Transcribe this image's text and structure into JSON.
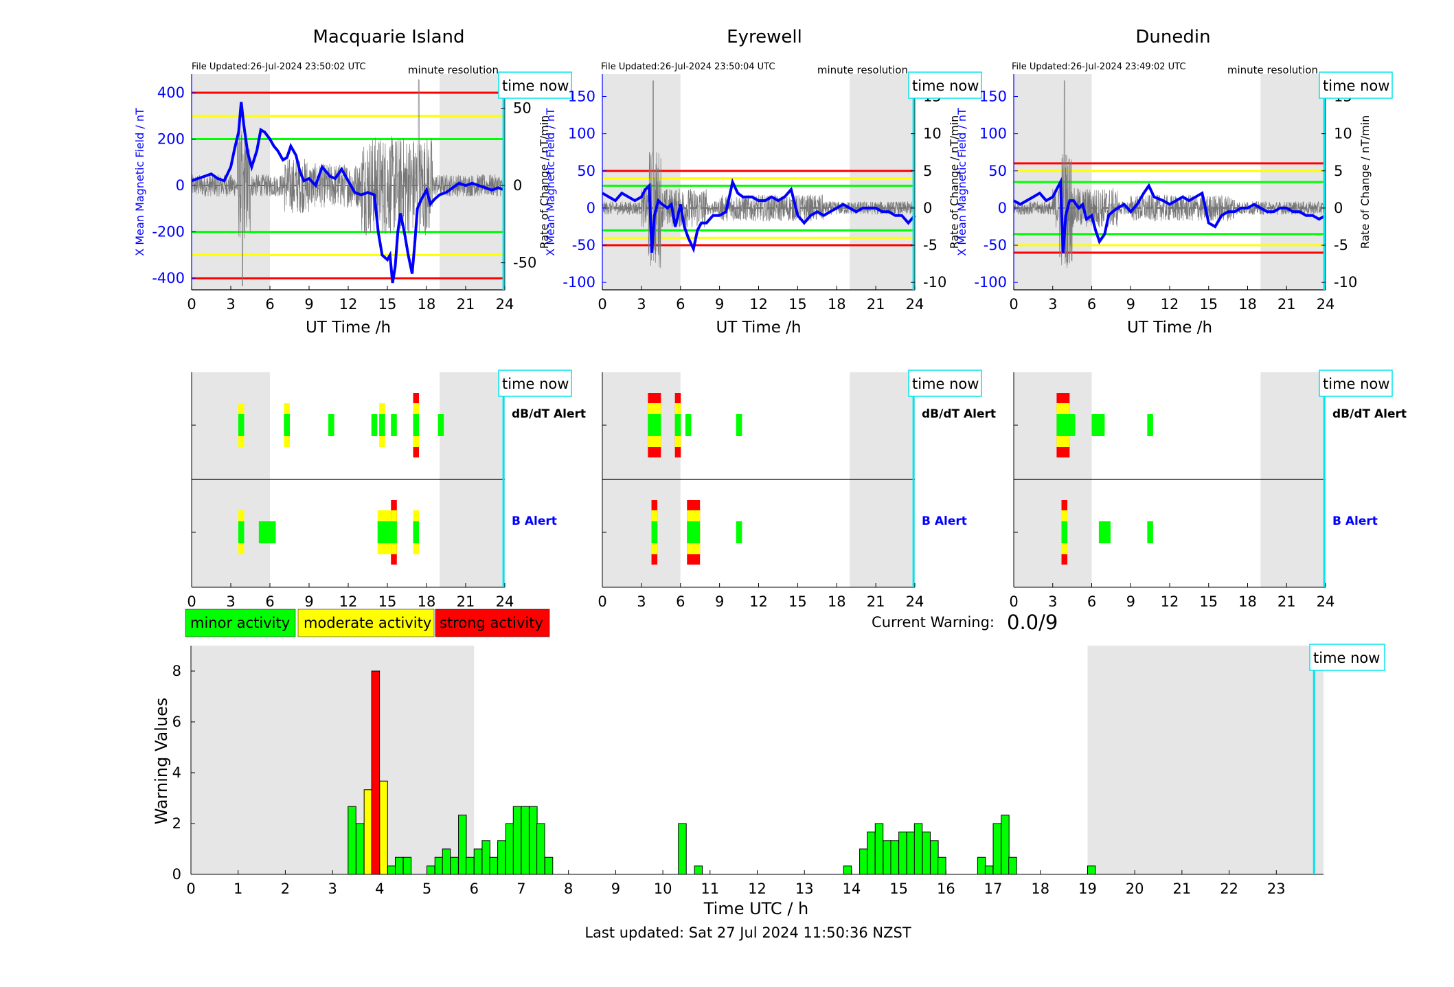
{
  "top_panels": [
    {
      "title": "Macquarie Island",
      "file_updated": "File Updated:26-Jul-2024 23:50:02 UTC",
      "resolution": "minute resolution",
      "time_now_label": "time now",
      "ylabel_left": "X Mean Magnetic Field / nT",
      "ylabel_right": "Rate of Change / nT/min",
      "xlabel": "UT Time /h",
      "x_ticks": [
        "0",
        "3",
        "6",
        "9",
        "12",
        "15",
        "18",
        "21",
        "24"
      ],
      "left_ticks": [
        "400",
        "200",
        "0",
        "-200",
        "-400"
      ],
      "right_ticks": [
        "50",
        "0",
        "-50"
      ]
    },
    {
      "title": "Eyrewell",
      "file_updated": "File Updated:26-Jul-2024 23:50:04 UTC",
      "resolution": "minute resolution",
      "time_now_label": "time now",
      "ylabel_left": "X Mean Magnetic Field / nT",
      "ylabel_right": "Rate of Change / nT/min",
      "xlabel": "UT Time /h",
      "x_ticks": [
        "0",
        "3",
        "6",
        "9",
        "12",
        "15",
        "18",
        "21",
        "24"
      ],
      "left_ticks": [
        "150",
        "100",
        "50",
        "0",
        "-50",
        "-100"
      ],
      "right_ticks": [
        "15",
        "10",
        "5",
        "0",
        "-5",
        "-10"
      ]
    },
    {
      "title": "Dunedin",
      "file_updated": "File Updated:26-Jul-2024 23:49:02 UTC",
      "resolution": "minute resolution",
      "time_now_label": "time now",
      "ylabel_left": "X Mean Magnetic Field / nT",
      "ylabel_right": "Rate of Change / nT/min",
      "xlabel": "UT Time /h",
      "x_ticks": [
        "0",
        "3",
        "6",
        "9",
        "12",
        "15",
        "18",
        "21",
        "24"
      ],
      "left_ticks": [
        "150",
        "100",
        "50",
        "0",
        "-50",
        "-100"
      ],
      "right_ticks": [
        "15",
        "10",
        "5",
        "0",
        "-5",
        "-10"
      ]
    }
  ],
  "alert_panels": [
    {
      "time_now_label": "time now",
      "dbdt_label": "dB/dT Alert",
      "b_label": "B Alert",
      "x_ticks": [
        "0",
        "3",
        "6",
        "9",
        "12",
        "15",
        "18",
        "21",
        "24"
      ]
    },
    {
      "time_now_label": "time now",
      "dbdt_label": "dB/dT Alert",
      "b_label": "B Alert",
      "x_ticks": [
        "0",
        "3",
        "6",
        "9",
        "12",
        "15",
        "18",
        "21",
        "24"
      ]
    },
    {
      "time_now_label": "time now",
      "dbdt_label": "dB/dT Alert",
      "b_label": "B Alert",
      "x_ticks": [
        "0",
        "3",
        "6",
        "9",
        "12",
        "15",
        "18",
        "21",
        "24"
      ]
    }
  ],
  "legend": [
    {
      "label": "minor activity",
      "color": "#00ff00"
    },
    {
      "label": "moderate activity",
      "color": "#ffff00"
    },
    {
      "label": "strong activity",
      "color": "#ff0000"
    }
  ],
  "current_warning": {
    "label": "Current Warning:",
    "value": "0.0/9"
  },
  "bottom_chart": {
    "ylabel": "Warning Values",
    "xlabel": "Time UTC / h",
    "time_now_label": "time now",
    "y_ticks": [
      "0",
      "2",
      "4",
      "6",
      "8"
    ],
    "x_ticks": [
      "0",
      "1",
      "2",
      "3",
      "4",
      "5",
      "6",
      "7",
      "8",
      "9",
      "10",
      "11",
      "12",
      "13",
      "14",
      "15",
      "16",
      "17",
      "18",
      "19",
      "20",
      "21",
      "22",
      "23"
    ]
  },
  "last_updated": "Last updated: Sat 27 Jul 2024 11:50:36 NZST",
  "colors": {
    "minor": "#00ff00",
    "moderate": "#ffff00",
    "strong": "#ff0000",
    "field_line": "#0000ff",
    "time_now": "#00e5ee",
    "night_shade": "#e6e6e6"
  },
  "chart_data": [
    {
      "type": "line",
      "station": "Macquarie Island",
      "xlim": [
        0,
        24
      ],
      "ylim_left": [
        -450,
        480
      ],
      "ylim_right": [
        -67.5,
        72
      ],
      "shaded_x": [
        [
          0,
          6
        ],
        [
          19,
          24
        ]
      ],
      "time_now_x": 23.9,
      "threshold_lines": [
        {
          "color": "red",
          "y": [
            400,
            -400
          ]
        },
        {
          "color": "yellow",
          "y": [
            300,
            -300
          ]
        },
        {
          "color": "green",
          "y": [
            200,
            -200
          ]
        }
      ],
      "field_series": {
        "x": [
          0,
          0.5,
          1,
          1.5,
          2,
          2.5,
          3,
          3.3,
          3.6,
          3.8,
          4,
          4.3,
          4.6,
          5,
          5.3,
          5.6,
          6,
          6.3,
          6.6,
          7,
          7.3,
          7.6,
          8,
          8.3,
          8.6,
          9,
          9.5,
          10,
          10.3,
          10.6,
          11,
          11.5,
          12,
          12.5,
          13,
          13.5,
          14,
          14.3,
          14.6,
          15,
          15.2,
          15.4,
          15.6,
          15.8,
          16,
          16.3,
          16.6,
          16.9,
          17.1,
          17.3,
          17.6,
          18,
          18.3,
          18.6,
          19,
          19.5,
          20,
          20.5,
          21,
          21.5,
          22,
          22.5,
          23,
          23.5,
          24
        ],
        "y": [
          20,
          30,
          40,
          50,
          30,
          20,
          80,
          160,
          230,
          360,
          260,
          140,
          80,
          150,
          240,
          230,
          200,
          170,
          150,
          110,
          120,
          170,
          130,
          60,
          20,
          30,
          0,
          80,
          60,
          40,
          30,
          70,
          20,
          -30,
          -40,
          -30,
          -40,
          -200,
          -300,
          -320,
          -300,
          -420,
          -350,
          -200,
          -120,
          -200,
          -300,
          -380,
          -250,
          -100,
          -60,
          -20,
          -80,
          -60,
          -40,
          -30,
          -10,
          10,
          0,
          10,
          0,
          -10,
          -20,
          -10,
          -20
        ]
      },
      "rate_series": "high-frequency noise ±50 nT/min, spikes near 4h, 8h, 14–18h"
    },
    {
      "type": "line",
      "station": "Eyrewell",
      "xlim": [
        0,
        24
      ],
      "ylim_left": [
        -110,
        180
      ],
      "ylim_right": [
        -11,
        18
      ],
      "shaded_x": [
        [
          0,
          6
        ],
        [
          19,
          24
        ]
      ],
      "time_now_x": 23.9,
      "threshold_lines": [
        {
          "color": "red",
          "y": [
            50,
            -50
          ]
        },
        {
          "color": "yellow",
          "y": [
            40,
            -40
          ]
        },
        {
          "color": "green",
          "y": [
            30,
            -30
          ]
        }
      ],
      "field_series": {
        "x": [
          0,
          0.5,
          1,
          1.5,
          2,
          2.5,
          3,
          3.3,
          3.6,
          3.8,
          4,
          4.3,
          4.6,
          5,
          5.3,
          5.6,
          6,
          6.3,
          6.6,
          7,
          7.3,
          7.6,
          8,
          8.5,
          9,
          9.5,
          10,
          10.4,
          10.8,
          11.5,
          12,
          12.5,
          13,
          13.5,
          14,
          14.5,
          15,
          15.5,
          16,
          16.5,
          17,
          17.5,
          18,
          18.5,
          19,
          19.5,
          20,
          20.5,
          21,
          21.5,
          22,
          22.5,
          23,
          23.5,
          24
        ],
        "y": [
          20,
          15,
          10,
          20,
          15,
          10,
          15,
          25,
          30,
          -60,
          -10,
          10,
          5,
          0,
          5,
          -25,
          5,
          -25,
          -40,
          -55,
          -30,
          -20,
          -20,
          -10,
          -10,
          -5,
          35,
          20,
          15,
          15,
          10,
          10,
          15,
          10,
          15,
          25,
          -10,
          -20,
          -10,
          -5,
          -10,
          -5,
          0,
          5,
          0,
          -5,
          0,
          0,
          0,
          -5,
          -5,
          -10,
          -10,
          -20,
          -10
        ]
      },
      "rate_series": "noise ±5 nT/min, spike ~+15 near 4h"
    },
    {
      "type": "line",
      "station": "Dunedin",
      "xlim": [
        0,
        24
      ],
      "ylim_left": [
        -110,
        180
      ],
      "ylim_right": [
        -11,
        18
      ],
      "shaded_x": [
        [
          0,
          6
        ],
        [
          19,
          24
        ]
      ],
      "time_now_x": 23.9,
      "threshold_lines": [
        {
          "color": "red",
          "y": [
            60,
            -60
          ]
        },
        {
          "color": "yellow",
          "y": [
            50,
            -50
          ]
        },
        {
          "color": "green",
          "y": [
            35,
            -35
          ]
        }
      ],
      "field_series": {
        "x": [
          0,
          0.5,
          1,
          1.5,
          2,
          2.5,
          3,
          3.3,
          3.6,
          3.8,
          4,
          4.3,
          4.6,
          5,
          5.3,
          5.6,
          6,
          6.3,
          6.6,
          7,
          7.3,
          7.6,
          8,
          8.5,
          9,
          9.5,
          10,
          10.4,
          10.8,
          11.5,
          12,
          12.5,
          13,
          13.5,
          14,
          14.5,
          15,
          15.5,
          16,
          16.5,
          17,
          17.5,
          18,
          18.5,
          19,
          19.5,
          20,
          20.5,
          21,
          21.5,
          22,
          22.5,
          23,
          23.5,
          24
        ],
        "y": [
          10,
          5,
          10,
          15,
          20,
          10,
          15,
          25,
          35,
          -60,
          -10,
          10,
          10,
          0,
          5,
          -15,
          -10,
          -30,
          -45,
          -35,
          -10,
          -5,
          0,
          5,
          -5,
          5,
          20,
          30,
          15,
          10,
          5,
          10,
          15,
          10,
          15,
          20,
          -20,
          -25,
          -10,
          -5,
          -5,
          0,
          0,
          5,
          0,
          -5,
          -5,
          0,
          0,
          -5,
          -5,
          -10,
          -10,
          -15,
          -10
        ]
      },
      "rate_series": "noise ±5 nT/min, spike near 4h"
    },
    {
      "type": "alert_strip",
      "station": "Macquarie Island",
      "dbdt": [
        {
          "x": 3.8,
          "level": "moderate"
        },
        {
          "x": 7.3,
          "level": "moderate"
        },
        {
          "x": 10.7,
          "level": "minor"
        },
        {
          "x": 14.0,
          "level": "minor"
        },
        {
          "x": 14.6,
          "level": "moderate"
        },
        {
          "x": 15.5,
          "level": "minor"
        },
        {
          "x": 17.2,
          "level": "strong"
        },
        {
          "x": 19.1,
          "level": "minor"
        }
      ],
      "b": [
        {
          "x": 3.8,
          "level": "moderate"
        },
        {
          "x": 5.8,
          "level": "minor",
          "w": 1.3
        },
        {
          "x": 15.0,
          "level": "moderate",
          "w": 1.5
        },
        {
          "x": 15.5,
          "level": "strong"
        },
        {
          "x": 17.2,
          "level": "moderate"
        }
      ]
    },
    {
      "type": "alert_strip",
      "station": "Eyrewell",
      "dbdt": [
        {
          "x": 4.0,
          "level": "strong",
          "w": 1.0
        },
        {
          "x": 5.8,
          "level": "strong"
        },
        {
          "x": 6.6,
          "level": "minor"
        },
        {
          "x": 10.5,
          "level": "minor"
        }
      ],
      "b": [
        {
          "x": 4.0,
          "level": "strong"
        },
        {
          "x": 7.0,
          "level": "strong",
          "w": 1.0
        },
        {
          "x": 10.5,
          "level": "minor"
        }
      ]
    },
    {
      "type": "alert_strip",
      "station": "Dunedin",
      "dbdt": [
        {
          "x": 3.8,
          "level": "strong",
          "w": 1.0
        },
        {
          "x": 4.5,
          "level": "minor"
        },
        {
          "x": 6.5,
          "level": "minor",
          "w": 1.0
        },
        {
          "x": 10.5,
          "level": "minor"
        }
      ],
      "b": [
        {
          "x": 3.9,
          "level": "strong"
        },
        {
          "x": 7.0,
          "level": "minor",
          "w": 0.9
        },
        {
          "x": 10.5,
          "level": "minor"
        }
      ]
    },
    {
      "type": "bar",
      "title": "",
      "xlabel": "Time UTC / h",
      "ylabel": "Warning Values",
      "xlim": [
        0,
        24
      ],
      "ylim": [
        0,
        9
      ],
      "shaded_x": [
        [
          0,
          6
        ],
        [
          19,
          24
        ]
      ],
      "time_now_x": 23.8,
      "bin_width": 0.1667,
      "bars": [
        {
          "x": 3.33,
          "v": 2.67,
          "c": "minor"
        },
        {
          "x": 3.5,
          "v": 2.0,
          "c": "minor"
        },
        {
          "x": 3.67,
          "v": 3.33,
          "c": "moderate"
        },
        {
          "x": 3.83,
          "v": 8.0,
          "c": "strong"
        },
        {
          "x": 4.0,
          "v": 3.67,
          "c": "moderate"
        },
        {
          "x": 4.17,
          "v": 0.33,
          "c": "minor"
        },
        {
          "x": 4.33,
          "v": 0.67,
          "c": "minor"
        },
        {
          "x": 4.5,
          "v": 0.67,
          "c": "minor"
        },
        {
          "x": 5.0,
          "v": 0.33,
          "c": "minor"
        },
        {
          "x": 5.17,
          "v": 0.67,
          "c": "minor"
        },
        {
          "x": 5.33,
          "v": 1.0,
          "c": "minor"
        },
        {
          "x": 5.5,
          "v": 0.67,
          "c": "minor"
        },
        {
          "x": 5.67,
          "v": 2.33,
          "c": "minor"
        },
        {
          "x": 5.83,
          "v": 0.67,
          "c": "minor"
        },
        {
          "x": 6.0,
          "v": 1.0,
          "c": "minor"
        },
        {
          "x": 6.17,
          "v": 1.33,
          "c": "minor"
        },
        {
          "x": 6.33,
          "v": 0.67,
          "c": "minor"
        },
        {
          "x": 6.5,
          "v": 1.33,
          "c": "minor"
        },
        {
          "x": 6.67,
          "v": 2.0,
          "c": "minor"
        },
        {
          "x": 6.83,
          "v": 2.67,
          "c": "minor"
        },
        {
          "x": 7.0,
          "v": 2.67,
          "c": "minor"
        },
        {
          "x": 7.17,
          "v": 2.67,
          "c": "minor"
        },
        {
          "x": 7.33,
          "v": 2.0,
          "c": "minor"
        },
        {
          "x": 7.5,
          "v": 0.67,
          "c": "minor"
        },
        {
          "x": 10.33,
          "v": 2.0,
          "c": "minor"
        },
        {
          "x": 10.67,
          "v": 0.33,
          "c": "minor"
        },
        {
          "x": 13.83,
          "v": 0.33,
          "c": "minor"
        },
        {
          "x": 14.17,
          "v": 1.0,
          "c": "minor"
        },
        {
          "x": 14.33,
          "v": 1.67,
          "c": "minor"
        },
        {
          "x": 14.5,
          "v": 2.0,
          "c": "minor"
        },
        {
          "x": 14.67,
          "v": 1.33,
          "c": "minor"
        },
        {
          "x": 14.83,
          "v": 1.33,
          "c": "minor"
        },
        {
          "x": 15.0,
          "v": 1.67,
          "c": "minor"
        },
        {
          "x": 15.17,
          "v": 1.67,
          "c": "minor"
        },
        {
          "x": 15.33,
          "v": 2.0,
          "c": "minor"
        },
        {
          "x": 15.5,
          "v": 1.67,
          "c": "minor"
        },
        {
          "x": 15.67,
          "v": 1.33,
          "c": "minor"
        },
        {
          "x": 15.83,
          "v": 0.67,
          "c": "minor"
        },
        {
          "x": 16.67,
          "v": 0.67,
          "c": "minor"
        },
        {
          "x": 16.83,
          "v": 0.33,
          "c": "minor"
        },
        {
          "x": 17.0,
          "v": 2.0,
          "c": "minor"
        },
        {
          "x": 17.17,
          "v": 2.33,
          "c": "minor"
        },
        {
          "x": 17.33,
          "v": 0.67,
          "c": "minor"
        },
        {
          "x": 19.0,
          "v": 0.33,
          "c": "minor"
        }
      ]
    }
  ]
}
